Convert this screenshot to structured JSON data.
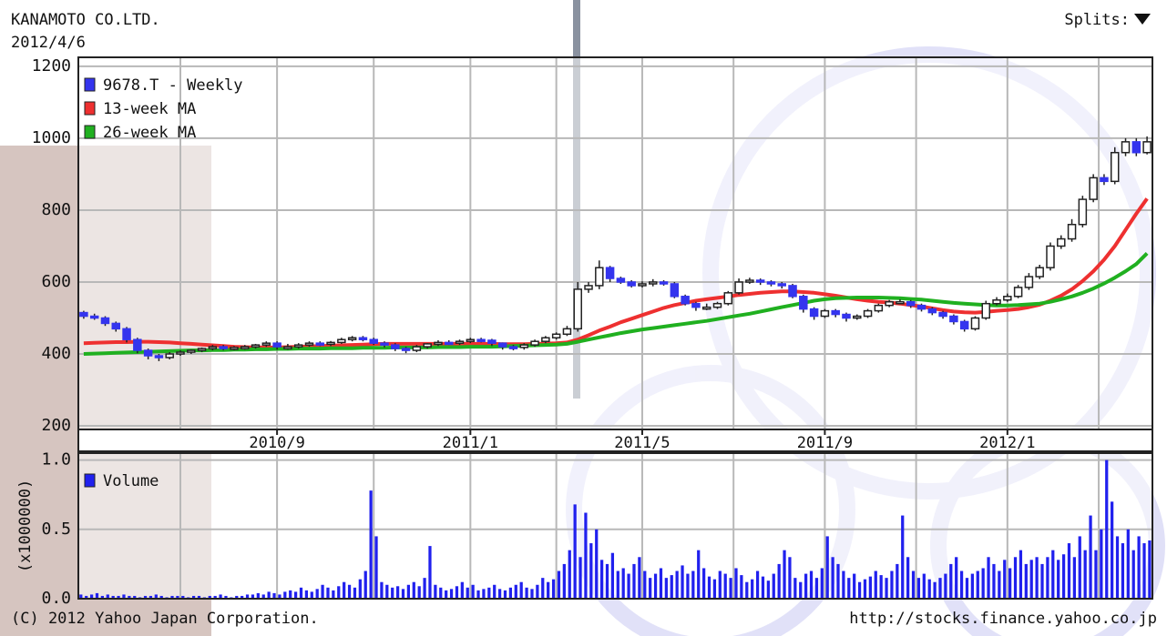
{
  "header": {
    "title": "KANAMOTO CO.LTD.",
    "date": "2012/4/6",
    "splits": "Splits:"
  },
  "chart_data": [
    {
      "type": "candlestick",
      "categories": [
        null,
        null,
        null,
        null,
        null,
        null,
        null,
        null,
        null,
        null,
        null,
        null,
        null,
        null,
        null,
        null,
        null,
        null,
        "2010/9",
        null,
        null,
        null,
        null,
        null,
        null,
        null,
        null,
        null,
        null,
        null,
        null,
        null,
        null,
        null,
        null,
        null,
        "2011/1",
        null,
        null,
        null,
        null,
        null,
        null,
        null,
        null,
        null,
        null,
        null,
        null,
        null,
        null,
        null,
        "2011/5",
        null,
        null,
        null,
        null,
        null,
        null,
        null,
        null,
        null,
        null,
        null,
        null,
        null,
        null,
        null,
        null,
        "2011/9",
        null,
        null,
        null,
        null,
        null,
        null,
        null,
        null,
        null,
        null,
        null,
        null,
        null,
        null,
        null,
        null,
        "2012/1",
        null,
        null,
        null,
        null,
        null,
        null,
        null,
        null,
        null,
        null,
        null,
        null,
        null
      ],
      "series": [
        {
          "name": "9678.T - Weekly",
          "color": "#3434ee",
          "up_color": "#ffffff",
          "open": [
            515,
            505,
            500,
            485,
            470,
            440,
            410,
            395,
            390,
            400,
            405,
            410,
            415,
            420,
            415,
            418,
            420,
            425,
            430,
            420,
            420,
            425,
            430,
            428,
            432,
            440,
            445,
            440,
            430,
            425,
            415,
            410,
            420,
            428,
            432,
            430,
            435,
            440,
            438,
            430,
            420,
            418,
            425,
            435,
            445,
            455,
            470,
            580,
            590,
            640,
            610,
            600,
            590,
            595,
            600,
            595,
            560,
            540,
            530,
            530,
            540,
            570,
            600,
            605,
            600,
            595,
            590,
            560,
            525,
            505,
            520,
            510,
            500,
            505,
            520,
            535,
            545,
            545,
            535,
            525,
            515,
            505,
            490,
            470,
            500,
            540,
            550,
            560,
            585,
            615,
            640,
            700,
            720,
            760,
            830,
            890,
            880,
            960,
            990,
            960
          ],
          "high": [
            520,
            512,
            505,
            490,
            475,
            445,
            415,
            400,
            405,
            410,
            412,
            418,
            425,
            425,
            422,
            425,
            428,
            435,
            435,
            428,
            430,
            435,
            435,
            436,
            445,
            450,
            450,
            445,
            435,
            430,
            420,
            425,
            430,
            438,
            438,
            440,
            445,
            445,
            442,
            432,
            425,
            430,
            440,
            450,
            460,
            478,
            600,
            600,
            660,
            645,
            615,
            605,
            602,
            608,
            605,
            600,
            565,
            545,
            540,
            545,
            575,
            610,
            612,
            610,
            605,
            600,
            595,
            565,
            530,
            525,
            525,
            515,
            510,
            525,
            540,
            550,
            552,
            550,
            540,
            530,
            520,
            510,
            495,
            505,
            548,
            558,
            568,
            592,
            625,
            648,
            710,
            730,
            775,
            840,
            900,
            900,
            975,
            1000,
            1000,
            1005
          ],
          "low": [
            498,
            495,
            478,
            462,
            432,
            402,
            385,
            380,
            385,
            395,
            400,
            405,
            410,
            410,
            410,
            412,
            415,
            420,
            412,
            412,
            415,
            420,
            422,
            422,
            428,
            435,
            435,
            425,
            418,
            408,
            402,
            405,
            415,
            422,
            425,
            425,
            430,
            432,
            422,
            412,
            410,
            412,
            420,
            430,
            440,
            450,
            462,
            570,
            580,
            600,
            595,
            585,
            585,
            588,
            590,
            555,
            535,
            520,
            522,
            525,
            535,
            565,
            595,
            592,
            588,
            582,
            555,
            515,
            495,
            500,
            502,
            490,
            495,
            500,
            515,
            530,
            538,
            528,
            518,
            508,
            498,
            482,
            462,
            465,
            495,
            535,
            545,
            555,
            578,
            608,
            632,
            692,
            712,
            752,
            822,
            870,
            872,
            950,
            950,
            955
          ],
          "close": [
            505,
            500,
            485,
            470,
            440,
            410,
            395,
            390,
            400,
            405,
            410,
            415,
            420,
            415,
            418,
            420,
            425,
            430,
            420,
            420,
            425,
            430,
            428,
            432,
            440,
            445,
            440,
            430,
            425,
            415,
            410,
            420,
            428,
            432,
            430,
            435,
            440,
            438,
            430,
            420,
            418,
            425,
            435,
            445,
            455,
            470,
            580,
            590,
            640,
            610,
            600,
            590,
            595,
            600,
            595,
            560,
            540,
            530,
            530,
            540,
            570,
            600,
            605,
            600,
            595,
            590,
            560,
            525,
            505,
            520,
            510,
            500,
            505,
            520,
            535,
            545,
            545,
            535,
            525,
            515,
            505,
            490,
            470,
            500,
            540,
            550,
            560,
            585,
            615,
            640,
            700,
            720,
            760,
            830,
            890,
            880,
            960,
            990,
            960,
            990
          ]
        },
        {
          "name": "13-week MA",
          "color": "#ee3030",
          "values": [
            430,
            431,
            432,
            433,
            433,
            434,
            434,
            433,
            432,
            430,
            428,
            426,
            424,
            422,
            420,
            419,
            418,
            418,
            418,
            419,
            420,
            421,
            422,
            423,
            424,
            425,
            426,
            427,
            428,
            428,
            428,
            428,
            428,
            428,
            428,
            428,
            428,
            428,
            428,
            427,
            427,
            427,
            428,
            429,
            430,
            432,
            440,
            452,
            465,
            476,
            488,
            498,
            508,
            518,
            528,
            536,
            542,
            548,
            552,
            556,
            560,
            564,
            567,
            570,
            572,
            574,
            574,
            572,
            570,
            566,
            562,
            557,
            552,
            548,
            545,
            543,
            540,
            536,
            532,
            527,
            522,
            518,
            516,
            515,
            517,
            520,
            522,
            525,
            530,
            537,
            548,
            562,
            580,
            603,
            630,
            662,
            700,
            745,
            790,
            832
          ]
        },
        {
          "name": "26-week MA",
          "color": "#20b020",
          "values": [
            400,
            401,
            402,
            403,
            404,
            405,
            406,
            407,
            408,
            409,
            410,
            410,
            411,
            411,
            412,
            412,
            413,
            413,
            414,
            414,
            415,
            415,
            415,
            416,
            416,
            416,
            417,
            417,
            417,
            418,
            418,
            418,
            418,
            419,
            419,
            419,
            420,
            420,
            420,
            421,
            422,
            423,
            424,
            425,
            426,
            428,
            434,
            440,
            446,
            452,
            458,
            463,
            468,
            472,
            476,
            480,
            484,
            488,
            492,
            497,
            502,
            507,
            512,
            518,
            524,
            530,
            536,
            542,
            548,
            552,
            555,
            556,
            557,
            557,
            557,
            556,
            555,
            553,
            551,
            548,
            545,
            542,
            540,
            538,
            536,
            535,
            535,
            536,
            538,
            540,
            545,
            552,
            560,
            570,
            582,
            596,
            612,
            630,
            650,
            680
          ]
        }
      ],
      "ylim": [
        190,
        1225
      ],
      "yticks": [
        200,
        400,
        600,
        800,
        1000,
        1200
      ],
      "grid": true,
      "legend": "top-left"
    },
    {
      "type": "bar",
      "ylabel": "(x1000000)",
      "series": [
        {
          "name": "Volume",
          "color": "#2020ee",
          "values": [
            0.03,
            0.02,
            0.03,
            0.04,
            0.02,
            0.03,
            0.02,
            0.02,
            0.03,
            0.02,
            0.02,
            0.01,
            0.02,
            0.02,
            0.03,
            0.02,
            0.01,
            0.02,
            0.02,
            0.02,
            0.01,
            0.02,
            0.02,
            0.01,
            0.02,
            0.02,
            0.03,
            0.02,
            0.01,
            0.02,
            0.02,
            0.03,
            0.03,
            0.04,
            0.03,
            0.05,
            0.04,
            0.03,
            0.05,
            0.06,
            0.05,
            0.08,
            0.06,
            0.05,
            0.07,
            0.1,
            0.08,
            0.06,
            0.09,
            0.12,
            0.1,
            0.08,
            0.14,
            0.2,
            0.78,
            0.45,
            0.12,
            0.1,
            0.08,
            0.09,
            0.07,
            0.1,
            0.12,
            0.09,
            0.15,
            0.38,
            0.1,
            0.08,
            0.06,
            0.07,
            0.09,
            0.12,
            0.08,
            0.1,
            0.06,
            0.07,
            0.08,
            0.1,
            0.07,
            0.06,
            0.08,
            0.1,
            0.12,
            0.08,
            0.07,
            0.1,
            0.15,
            0.12,
            0.14,
            0.2,
            0.25,
            0.35,
            0.68,
            0.3,
            0.62,
            0.4,
            0.5,
            0.28,
            0.25,
            0.33,
            0.2,
            0.22,
            0.18,
            0.25,
            0.3,
            0.2,
            0.15,
            0.18,
            0.22,
            0.15,
            0.17,
            0.2,
            0.24,
            0.18,
            0.2,
            0.35,
            0.22,
            0.16,
            0.14,
            0.2,
            0.18,
            0.15,
            0.22,
            0.17,
            0.12,
            0.14,
            0.2,
            0.16,
            0.13,
            0.18,
            0.25,
            0.35,
            0.3,
            0.15,
            0.12,
            0.18,
            0.2,
            0.15,
            0.22,
            0.45,
            0.3,
            0.25,
            0.2,
            0.15,
            0.18,
            0.12,
            0.14,
            0.16,
            0.2,
            0.17,
            0.15,
            0.2,
            0.25,
            0.6,
            0.3,
            0.2,
            0.15,
            0.18,
            0.14,
            0.12,
            0.15,
            0.18,
            0.25,
            0.3,
            0.2,
            0.15,
            0.18,
            0.2,
            0.22,
            0.3,
            0.25,
            0.2,
            0.28,
            0.22,
            0.3,
            0.35,
            0.25,
            0.28,
            0.3,
            0.25,
            0.3,
            0.35,
            0.28,
            0.32,
            0.4,
            0.3,
            0.45,
            0.35,
            0.6,
            0.35,
            0.5,
            1.0,
            0.7,
            0.45,
            0.4,
            0.5,
            0.35,
            0.45,
            0.4,
            0.42
          ]
        }
      ],
      "ylim": [
        0,
        1.05
      ],
      "yticks": [
        {
          "value": 0,
          "label": "0.0"
        },
        0.5,
        {
          "value": 1,
          "label": "1.0"
        }
      ],
      "grid": true,
      "legend": "top-left"
    }
  ],
  "footer": {
    "copyright": "(C) 2012 Yahoo Japan Corporation.",
    "url": "http://stocks.finance.yahoo.co.jp"
  }
}
